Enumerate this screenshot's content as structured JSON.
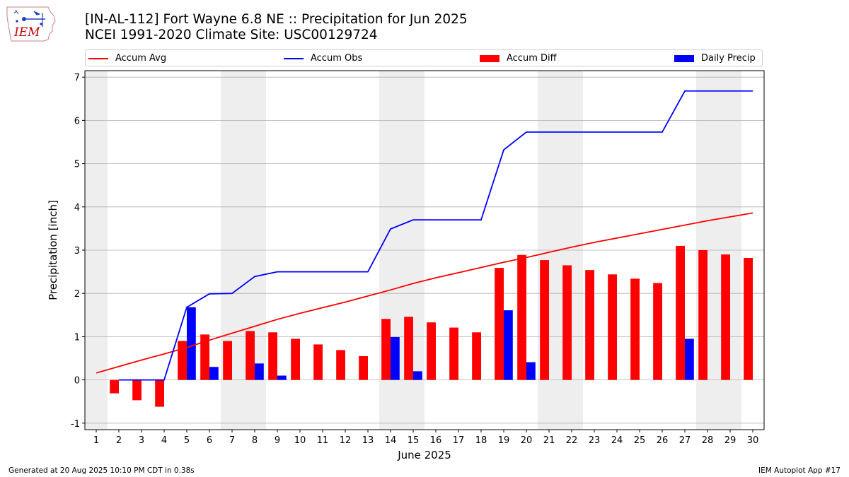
{
  "logo": {
    "text": "IEM"
  },
  "header": {
    "title": "[IN-AL-112] Fort Wayne 6.8 NE :: Precipitation for Jun 2025",
    "subtitle": "NCEI 1991-2020 Climate Site: USC00129724"
  },
  "footer": {
    "left": "Generated at 20 Aug 2025 10:10 PM CDT in 0.38s",
    "right": "IEM Autoplot App #17"
  },
  "chart_data": {
    "type": "bar",
    "xlabel": "June 2025",
    "ylabel": "Precipitation [inch]",
    "xlim": [
      0.5,
      30.5
    ],
    "ylim": [
      -1.15,
      7.15
    ],
    "x_ticks": [
      1,
      2,
      3,
      4,
      5,
      6,
      7,
      8,
      9,
      10,
      11,
      12,
      13,
      14,
      15,
      16,
      17,
      18,
      19,
      20,
      21,
      22,
      23,
      24,
      25,
      26,
      27,
      28,
      29,
      30
    ],
    "y_ticks": [
      -1,
      0,
      1,
      2,
      3,
      4,
      5,
      6,
      7
    ],
    "grid": "horizontal",
    "weekend_shading": [
      [
        0.5,
        1.5
      ],
      [
        6.5,
        8.5
      ],
      [
        13.5,
        15.5
      ],
      [
        20.5,
        22.5
      ],
      [
        27.5,
        29.5
      ]
    ],
    "legend_position": "top",
    "colors": {
      "accum_avg": "#ff0000",
      "accum_obs": "#0000ff",
      "accum_diff": "#ff0000",
      "daily_precip": "#0000ff",
      "weekend": "#eeeeee",
      "grid": "#b0b0b0"
    },
    "days": [
      1,
      2,
      3,
      4,
      5,
      6,
      7,
      8,
      9,
      10,
      11,
      12,
      13,
      14,
      15,
      16,
      17,
      18,
      19,
      20,
      21,
      22,
      23,
      24,
      25,
      26,
      27,
      28,
      29,
      30
    ],
    "series": [
      {
        "name": "Accum Avg",
        "kind": "line",
        "values": [
          0.16,
          0.31,
          0.46,
          0.6,
          0.75,
          0.92,
          1.08,
          1.24,
          1.4,
          1.54,
          1.67,
          1.8,
          1.94,
          2.08,
          2.23,
          2.36,
          2.48,
          2.6,
          2.72,
          2.83,
          2.95,
          3.07,
          3.18,
          3.28,
          3.38,
          3.48,
          3.58,
          3.68,
          3.77,
          3.86
        ]
      },
      {
        "name": "Accum Obs",
        "kind": "line",
        "values": [
          null,
          0.0,
          0.0,
          0.0,
          1.68,
          1.99,
          2.0,
          2.39,
          2.5,
          2.5,
          2.5,
          2.5,
          2.5,
          3.49,
          3.7,
          3.7,
          3.7,
          3.7,
          5.32,
          5.73,
          5.73,
          5.73,
          5.73,
          5.73,
          5.73,
          5.73,
          6.68,
          6.68,
          6.68,
          6.68
        ]
      },
      {
        "name": "Accum Diff",
        "kind": "bar",
        "values": [
          null,
          -0.31,
          -0.47,
          -0.62,
          0.9,
          1.05,
          0.9,
          1.13,
          1.1,
          0.95,
          0.82,
          0.69,
          0.55,
          1.41,
          1.46,
          1.33,
          1.21,
          1.1,
          2.59,
          2.89,
          2.77,
          2.65,
          2.54,
          2.44,
          2.34,
          2.24,
          3.1,
          3.0,
          2.9,
          2.82
        ]
      },
      {
        "name": "Daily Precip",
        "kind": "bar",
        "values": [
          0,
          0,
          0,
          0,
          1.68,
          0.3,
          0,
          0.38,
          0.1,
          0,
          0,
          0,
          0,
          0.99,
          0.2,
          0,
          0,
          0,
          1.61,
          0.41,
          0,
          0,
          0,
          0,
          0,
          0,
          0.95,
          0,
          0,
          0
        ]
      }
    ]
  }
}
